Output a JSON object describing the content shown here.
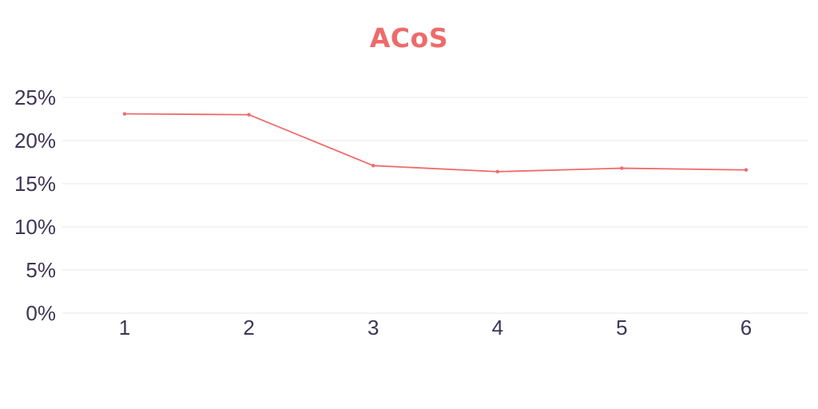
{
  "chart_data": {
    "type": "line",
    "title": "ACoS",
    "xlabel": "",
    "ylabel": "",
    "x": [
      "1",
      "2",
      "3",
      "4",
      "5",
      "6"
    ],
    "series": [
      {
        "values": [
          23.1,
          23.0,
          17.1,
          16.4,
          16.8,
          16.6
        ]
      }
    ],
    "ylim": [
      0,
      25
    ],
    "yticks": [
      0,
      5,
      10,
      15,
      20,
      25
    ],
    "ytick_labels": [
      "0%",
      "5%",
      "10%",
      "15%",
      "20%",
      "25%"
    ],
    "grid": true,
    "legend": "none"
  },
  "colors": {
    "title": "#ee6b6b",
    "line": "#ee6b6b",
    "tick_text": "#3d3556",
    "grid": "#e8e8ec"
  }
}
